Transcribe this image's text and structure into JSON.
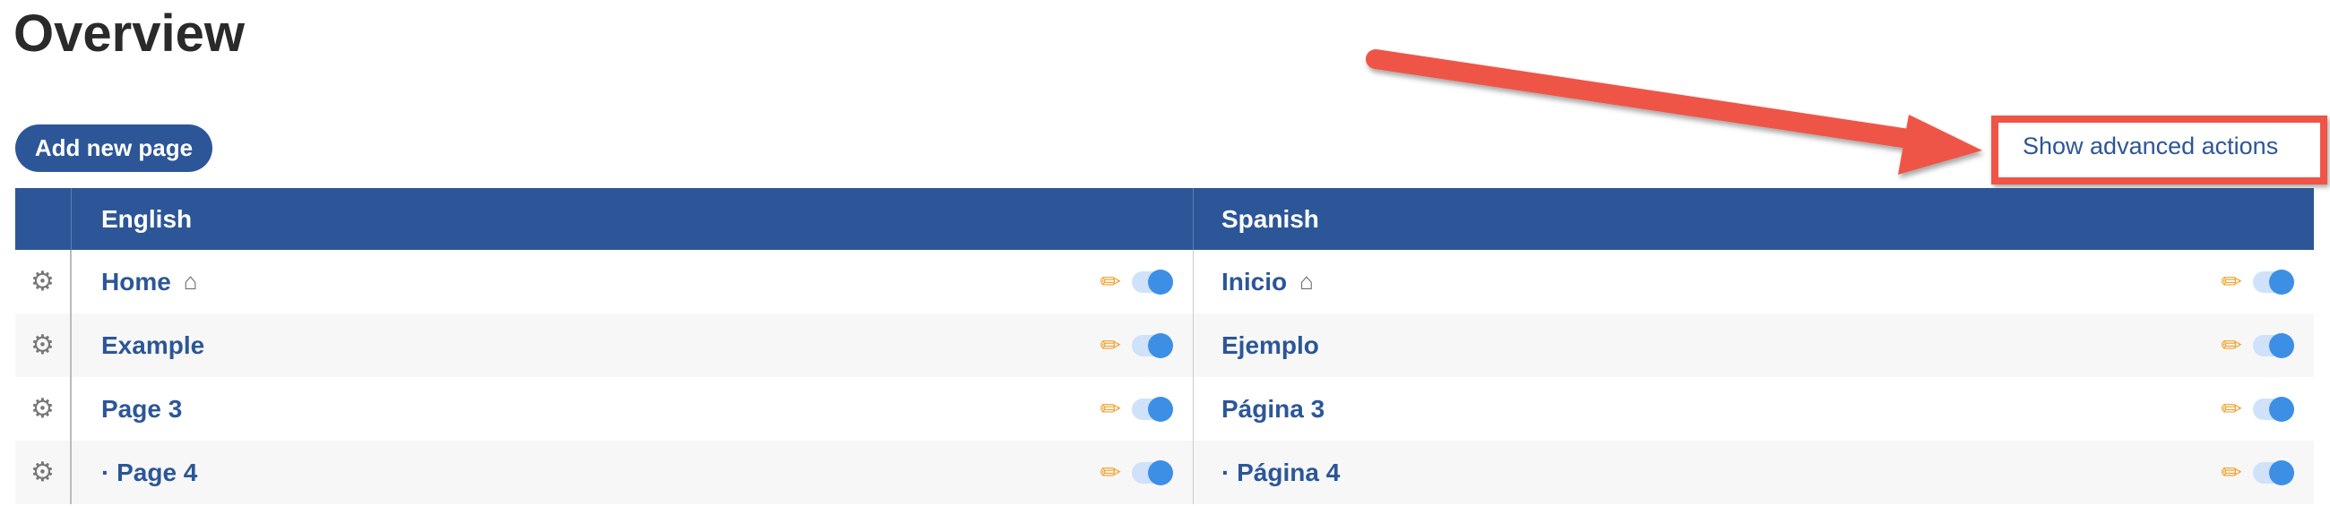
{
  "page": {
    "title": "Overview"
  },
  "toolbar": {
    "add_label": "Add new page",
    "advanced_label": "Show advanced actions"
  },
  "colors": {
    "primary": "#2c5697",
    "annotation": "#ef5446",
    "toggle_on": "#3d8fe6"
  },
  "table": {
    "headers": [
      "English",
      "Spanish"
    ],
    "rows": [
      {
        "en": "Home",
        "es": "Inicio",
        "home": true,
        "en_enabled": true,
        "es_enabled": true
      },
      {
        "en": "Example",
        "es": "Ejemplo",
        "home": false,
        "en_enabled": true,
        "es_enabled": true
      },
      {
        "en": "Page 3",
        "es": "Página 3",
        "home": false,
        "en_enabled": true,
        "es_enabled": true
      },
      {
        "en": "· Page 4",
        "es": "· Página 4",
        "home": false,
        "en_enabled": true,
        "es_enabled": true
      }
    ]
  },
  "icons": {
    "row_settings": "gear-icon",
    "home": "house-icon",
    "edit": "pencil-icon",
    "status": "toggle-switch"
  }
}
